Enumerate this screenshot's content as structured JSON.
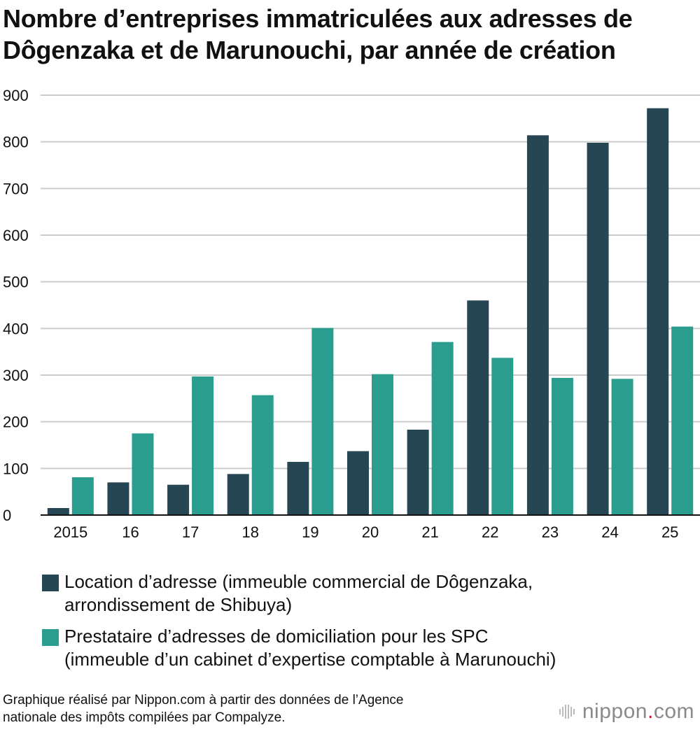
{
  "title": {
    "line1": "Nombre d’entreprises immatriculées aux adresses de",
    "line2": "Dôgenzaka et de Marunouchi, par année de création"
  },
  "colors": {
    "series1": "#264653",
    "series2": "#2a9d8f",
    "grid": "#cccccc"
  },
  "chart_data": {
    "type": "bar",
    "categories": [
      "2015",
      "16",
      "17",
      "18",
      "19",
      "20",
      "21",
      "22",
      "23",
      "24",
      "25"
    ],
    "series": [
      {
        "name": "Location d’adresse (immeuble commercial de Dôgenzaka, arrondissement de Shibuya)",
        "values": [
          15,
          70,
          65,
          88,
          114,
          137,
          183,
          460,
          814,
          798,
          872
        ]
      },
      {
        "name": "Prestataire d’adresses de domiciliation pour les SPC (immeuble d’un cabinet d’expertise comptable à Marunouchi)",
        "values": [
          81,
          175,
          297,
          257,
          401,
          302,
          371,
          337,
          294,
          292,
          404
        ]
      }
    ],
    "ylim": [
      0,
      900
    ],
    "yticks": [
      0,
      100,
      200,
      300,
      400,
      500,
      600,
      700,
      800,
      900
    ],
    "grid": true,
    "legend_position": "bottom"
  },
  "legend": {
    "series1": {
      "line1": "Location d’adresse (immeuble commercial de Dôgenzaka,",
      "line2": "arrondissement de Shibuya)"
    },
    "series2": {
      "line1": "Prestataire d’adresses de domiciliation pour les SPC",
      "line2": "(immeuble d’un cabinet d’expertise comptable à Marunouchi)"
    }
  },
  "source": {
    "line1": "Graphique réalisé par Nippon.com à partir des données de l’Agence",
    "line2": "nationale des impôts compilées par Compalyze."
  },
  "logo": {
    "name": "nippon",
    "dot": ".",
    "suffix": "com",
    "icon": "nippon-waves-icon"
  }
}
